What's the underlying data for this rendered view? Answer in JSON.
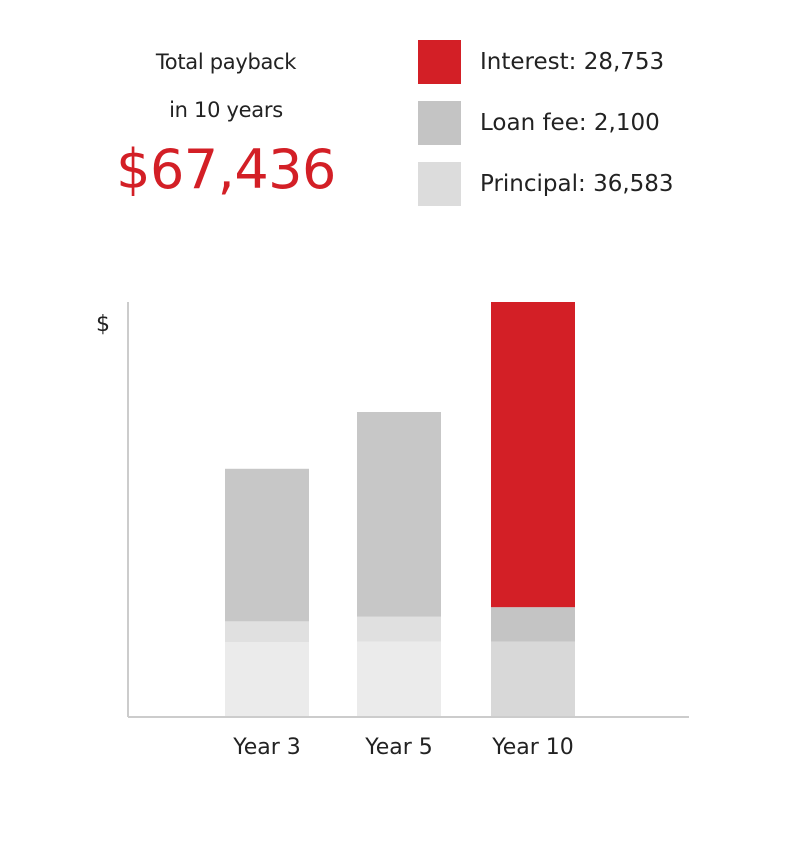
{
  "summary": {
    "line1": "Total payback",
    "line2": "in 10 years",
    "total": "$67,436"
  },
  "legend": [
    {
      "label": "Interest: 28,753",
      "color": "#d31f26"
    },
    {
      "label": "Loan fee: 2,100",
      "color": "#c4c4c4"
    },
    {
      "label": "Principal: 36,583",
      "color": "#dcdcdc"
    }
  ],
  "chart_data": {
    "type": "bar",
    "stacked": true,
    "ylabel": "$",
    "categories": [
      "Year 3",
      "Year 5",
      "Year 10"
    ],
    "ylim": [
      0,
      70000
    ],
    "series": [
      {
        "name": "Principal",
        "values": [
          12500,
          12600,
          12600
        ],
        "colors": [
          "#ebebeb",
          "#ebebeb",
          "#d8d8d8"
        ]
      },
      {
        "name": "Loan fee",
        "values": [
          3500,
          4200,
          5800
        ],
        "colors": [
          "#e0e0e0",
          "#e0e0e0",
          "#c4c4c4"
        ]
      },
      {
        "name": "Interest",
        "values": [
          25800,
          34600,
          51600
        ],
        "colors": [
          "#c7c7c7",
          "#c7c7c7",
          "#d31f26"
        ]
      }
    ],
    "grid": false,
    "legend_position": "top-right"
  }
}
